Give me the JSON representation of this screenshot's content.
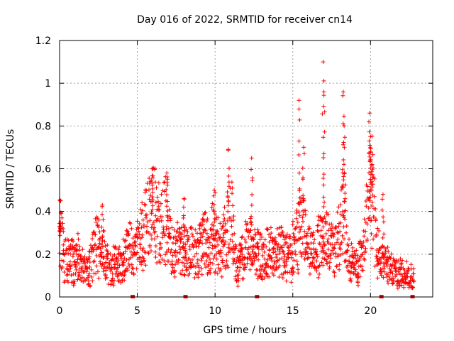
{
  "chart_data": {
    "type": "scatter",
    "title": "Day 016 of 2022, SRMTID for receiver cn14",
    "xlabel": "GPS time / hours",
    "ylabel": "SRMTID / TECUs",
    "xlim": [
      0,
      24
    ],
    "ylim": [
      0,
      1.2
    ],
    "xticks": [
      0,
      5,
      10,
      15,
      20
    ],
    "xtick_labels": [
      "0",
      "5",
      "10",
      "15",
      "20"
    ],
    "yticks": [
      0,
      0.2,
      0.4,
      0.6,
      0.8,
      1.0,
      1.2
    ],
    "ytick_labels": [
      "0",
      "0.2",
      "0.4",
      "0.6",
      "0.8",
      "1",
      "1.2"
    ],
    "grid": true,
    "marker": "plus",
    "color": "#ff0000",
    "axis_markers_x": [
      4.7,
      8.1,
      12.7,
      20.7,
      22.7
    ],
    "profile": [
      [
        0.0,
        0.33
      ],
      [
        0.3,
        0.18
      ],
      [
        0.6,
        0.17
      ],
      [
        0.9,
        0.16
      ],
      [
        1.2,
        0.18
      ],
      [
        1.5,
        0.13
      ],
      [
        1.8,
        0.12
      ],
      [
        2.1,
        0.17
      ],
      [
        2.4,
        0.26
      ],
      [
        2.7,
        0.22
      ],
      [
        3.0,
        0.15
      ],
      [
        3.3,
        0.14
      ],
      [
        3.6,
        0.16
      ],
      [
        3.9,
        0.14
      ],
      [
        4.2,
        0.18
      ],
      [
        4.5,
        0.22
      ],
      [
        4.8,
        0.2
      ],
      [
        5.1,
        0.24
      ],
      [
        5.4,
        0.3
      ],
      [
        5.7,
        0.36
      ],
      [
        6.0,
        0.44
      ],
      [
        6.3,
        0.36
      ],
      [
        6.6,
        0.3
      ],
      [
        6.9,
        0.38
      ],
      [
        7.2,
        0.22
      ],
      [
        7.5,
        0.2
      ],
      [
        7.8,
        0.24
      ],
      [
        8.1,
        0.22
      ],
      [
        8.4,
        0.2
      ],
      [
        8.7,
        0.22
      ],
      [
        9.0,
        0.24
      ],
      [
        9.3,
        0.26
      ],
      [
        9.6,
        0.25
      ],
      [
        9.9,
        0.3
      ],
      [
        10.2,
        0.22
      ],
      [
        10.5,
        0.24
      ],
      [
        10.8,
        0.3
      ],
      [
        11.1,
        0.35
      ],
      [
        11.4,
        0.13
      ],
      [
        11.7,
        0.18
      ],
      [
        12.0,
        0.22
      ],
      [
        12.3,
        0.24
      ],
      [
        12.6,
        0.2
      ],
      [
        12.9,
        0.18
      ],
      [
        13.2,
        0.2
      ],
      [
        13.5,
        0.22
      ],
      [
        13.8,
        0.18
      ],
      [
        14.1,
        0.2
      ],
      [
        14.4,
        0.22
      ],
      [
        14.7,
        0.17
      ],
      [
        15.0,
        0.22
      ],
      [
        15.3,
        0.28
      ],
      [
        15.6,
        0.35
      ],
      [
        15.9,
        0.22
      ],
      [
        16.2,
        0.2
      ],
      [
        16.5,
        0.22
      ],
      [
        16.8,
        0.25
      ],
      [
        17.1,
        0.3
      ],
      [
        17.4,
        0.22
      ],
      [
        17.7,
        0.2
      ],
      [
        18.0,
        0.28
      ],
      [
        18.3,
        0.4
      ],
      [
        18.6,
        0.17
      ],
      [
        18.9,
        0.14
      ],
      [
        19.2,
        0.16
      ],
      [
        19.5,
        0.18
      ],
      [
        19.8,
        0.4
      ],
      [
        20.1,
        0.5
      ],
      [
        20.4,
        0.22
      ],
      [
        20.7,
        0.16
      ],
      [
        21.0,
        0.15
      ],
      [
        21.3,
        0.13
      ],
      [
        21.6,
        0.12
      ],
      [
        21.9,
        0.11
      ],
      [
        22.2,
        0.1
      ],
      [
        22.5,
        0.09
      ],
      [
        22.8,
        0.08
      ]
    ],
    "peaks": [
      [
        0.05,
        0.35
      ],
      [
        2.75,
        0.43
      ],
      [
        5.95,
        0.6
      ],
      [
        6.9,
        0.58
      ],
      [
        8.0,
        0.46
      ],
      [
        9.95,
        0.5
      ],
      [
        10.85,
        0.69
      ],
      [
        12.35,
        0.65
      ],
      [
        15.4,
        0.92
      ],
      [
        15.7,
        0.7
      ],
      [
        16.95,
        1.1
      ],
      [
        17.0,
        0.96
      ],
      [
        18.25,
        0.96
      ],
      [
        18.3,
        0.8
      ],
      [
        19.95,
        0.86
      ],
      [
        20.0,
        0.75
      ],
      [
        20.1,
        0.62
      ],
      [
        20.8,
        0.48
      ]
    ],
    "x_end": 22.8
  }
}
